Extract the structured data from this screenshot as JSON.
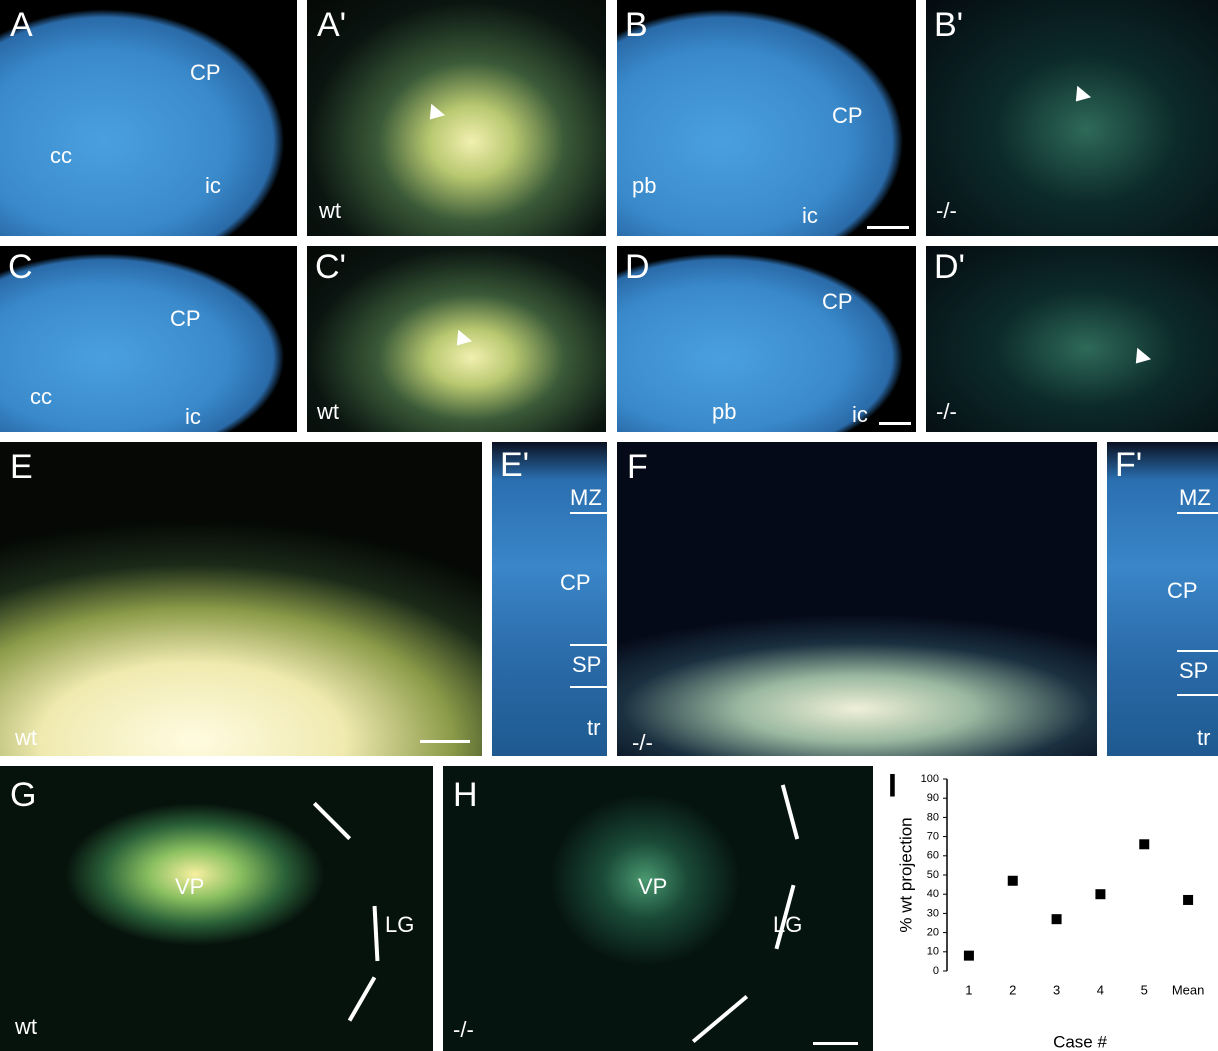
{
  "panels": [
    {
      "label": "A",
      "annotations": [
        "CP",
        "cc",
        "ic"
      ]
    },
    {
      "label": "A'",
      "annotations": [
        "wt"
      ]
    },
    {
      "label": "B",
      "annotations": [
        "CP",
        "pb",
        "ic"
      ]
    },
    {
      "label": "B'",
      "annotations": [
        "-/-"
      ]
    },
    {
      "label": "C",
      "annotations": [
        "CP",
        "cc",
        "ic"
      ]
    },
    {
      "label": "C'",
      "annotations": [
        "wt"
      ]
    },
    {
      "label": "D",
      "annotations": [
        "CP",
        "pb",
        "ic"
      ]
    },
    {
      "label": "D'",
      "annotations": [
        "-/-"
      ]
    },
    {
      "label": "E",
      "annotations": [
        "wt"
      ]
    },
    {
      "label": "E'",
      "annotations": [
        "MZ",
        "CP",
        "SP",
        "tr"
      ]
    },
    {
      "label": "F",
      "annotations": [
        "-/-"
      ]
    },
    {
      "label": "F'",
      "annotations": [
        "MZ",
        "CP",
        "SP",
        "tr"
      ]
    },
    {
      "label": "G",
      "annotations": [
        "VP",
        "LG",
        "wt"
      ]
    },
    {
      "label": "H",
      "annotations": [
        "VP",
        "LG",
        "-/-"
      ]
    }
  ],
  "chart_data": {
    "type": "scatter",
    "panel_label": "I",
    "x_label": "Case #",
    "y_label": "% wt projection",
    "categories": [
      "1",
      "2",
      "3",
      "4",
      "5",
      "Mean"
    ],
    "values": [
      8,
      47,
      27,
      40,
      66,
      37
    ],
    "color": "#000000",
    "ylim": [
      0,
      100
    ],
    "yticks": [
      0,
      10,
      20,
      30,
      40,
      50,
      60,
      70,
      80,
      90,
      100
    ]
  }
}
